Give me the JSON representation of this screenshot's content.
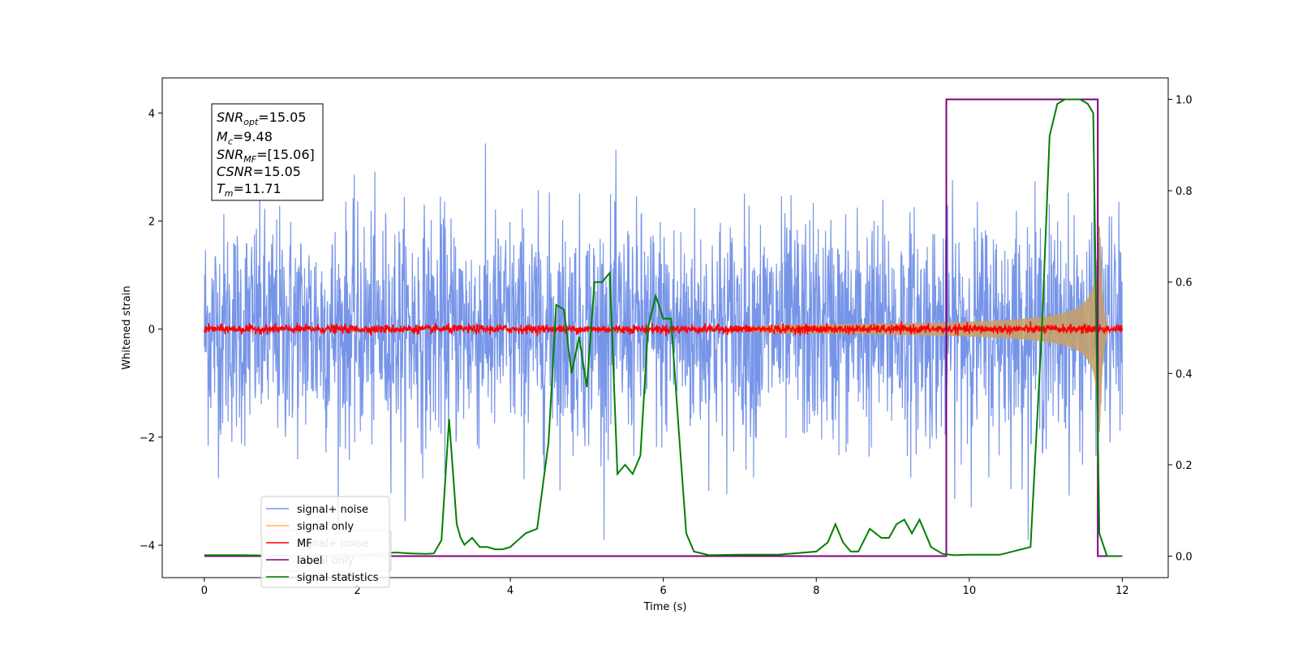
{
  "chart_data": {
    "type": "line",
    "xlabel": "Time (s)",
    "ylabel": "Whitened strain",
    "xlim": [
      -0.55,
      12.6
    ],
    "ylim": [
      -4.6,
      4.65
    ],
    "y2lim": [
      -0.047,
      1.047
    ],
    "xticks": [
      0,
      2,
      4,
      6,
      8,
      10,
      12
    ],
    "yticks": [
      -4,
      -2,
      0,
      2,
      4
    ],
    "y2ticks": [
      0.0,
      0.2,
      0.4,
      0.6,
      0.8,
      1.0
    ],
    "xtick_labels": [
      "0",
      "2",
      "4",
      "6",
      "8",
      "10",
      "12"
    ],
    "ytick_labels": [
      "−4",
      "−2",
      "0",
      "2",
      "4"
    ],
    "y2tick_labels": [
      "0.0",
      "0.2",
      "0.4",
      "0.6",
      "0.8",
      "1.0"
    ],
    "legend_position": "lower-left",
    "annotation": {
      "snr_opt": {
        "sym": "SNR",
        "sub": "opt",
        "rest": "=15.05"
      },
      "mc": {
        "sym": "M",
        "sub": "c",
        "rest": "=9.48"
      },
      "snr_mf": {
        "sym": "SNR",
        "sub": "MF",
        "rest": "=[15.06]"
      },
      "csnr": {
        "sym": "CSNR",
        "sub": "",
        "rest": "=15.05"
      },
      "tm": {
        "sym": "T",
        "sub": "m",
        "rest": "=11.71"
      }
    },
    "series": [
      {
        "name": "signal+ noise",
        "color": "#7795e8",
        "axis": "left",
        "style": "noise",
        "x_range": [
          0,
          12
        ],
        "amplitude_sigma": 1.0,
        "peak_values": [
          4.2,
          -3.8
        ]
      },
      {
        "name": "signal only",
        "color": "#ffb74d",
        "axis": "left",
        "style": "chirp",
        "x_range": [
          0,
          12
        ],
        "merger_time": 11.71,
        "peak_amplitude": 1.9
      },
      {
        "name": "MF",
        "color": "#ff0000",
        "axis": "left",
        "style": "noise",
        "x_range": [
          0,
          12
        ],
        "amplitude_sigma": 0.04
      },
      {
        "name": "label",
        "color": "#800080",
        "axis": "right",
        "style": "step",
        "x": [
          0,
          9.7,
          9.7,
          11.68,
          11.68,
          12.0
        ],
        "y": [
          0,
          0,
          1,
          1,
          0,
          0
        ]
      },
      {
        "name": "signal statistics",
        "color": "#008000",
        "axis": "right",
        "style": "line",
        "x": [
          0,
          0.5,
          1.0,
          1.5,
          2.0,
          2.5,
          2.7,
          2.9,
          3.0,
          3.1,
          3.2,
          3.3,
          3.35,
          3.4,
          3.5,
          3.6,
          3.7,
          3.8,
          3.9,
          4.0,
          4.2,
          4.35,
          4.5,
          4.6,
          4.7,
          4.8,
          4.9,
          5.0,
          5.1,
          5.2,
          5.3,
          5.4,
          5.5,
          5.6,
          5.7,
          5.8,
          5.9,
          6.0,
          6.1,
          6.2,
          6.3,
          6.4,
          6.6,
          7.0,
          7.5,
          8.0,
          8.15,
          8.25,
          8.35,
          8.45,
          8.55,
          8.7,
          8.85,
          8.95,
          9.05,
          9.15,
          9.25,
          9.35,
          9.5,
          9.65,
          9.8,
          10.0,
          10.4,
          10.8,
          10.95,
          11.05,
          11.15,
          11.25,
          11.35,
          11.45,
          11.55,
          11.62,
          11.7,
          11.8,
          12.0
        ],
        "y": [
          0.002,
          0.002,
          0.001,
          0.002,
          0.002,
          0.008,
          0.006,
          0.005,
          0.006,
          0.035,
          0.3,
          0.07,
          0.04,
          0.025,
          0.04,
          0.02,
          0.02,
          0.015,
          0.015,
          0.02,
          0.05,
          0.06,
          0.25,
          0.55,
          0.54,
          0.4,
          0.48,
          0.37,
          0.6,
          0.6,
          0.62,
          0.18,
          0.2,
          0.18,
          0.22,
          0.5,
          0.57,
          0.52,
          0.52,
          0.28,
          0.05,
          0.01,
          0.002,
          0.003,
          0.003,
          0.01,
          0.03,
          0.07,
          0.03,
          0.01,
          0.01,
          0.06,
          0.04,
          0.04,
          0.07,
          0.08,
          0.05,
          0.08,
          0.02,
          0.005,
          0.002,
          0.003,
          0.003,
          0.02,
          0.5,
          0.92,
          0.99,
          1.0,
          1.0,
          1.0,
          0.99,
          0.97,
          0.05,
          0.0,
          0.0
        ]
      }
    ],
    "legend_entries": [
      "signal+ noise",
      "signal only",
      "MF",
      "label",
      "signal statistics"
    ],
    "legend_ghost_entries": [
      "signal+ noise",
      "signal only"
    ]
  }
}
